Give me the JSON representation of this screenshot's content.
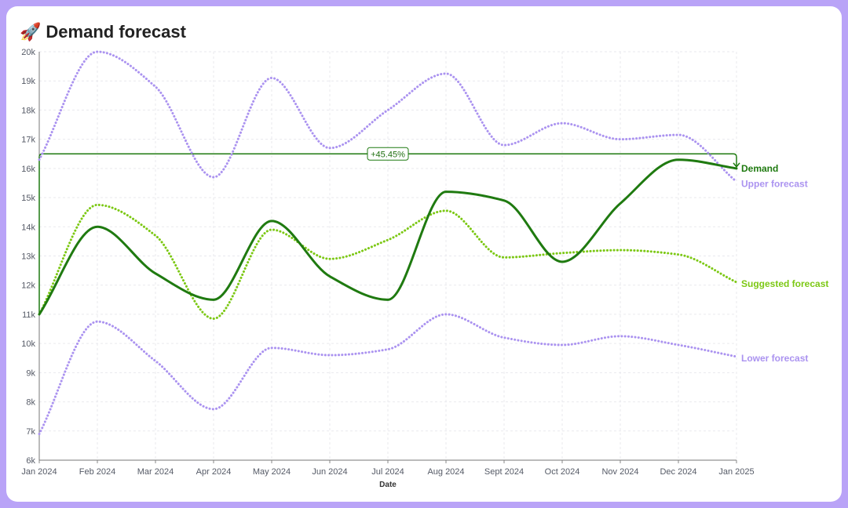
{
  "title": {
    "emoji": "🚀",
    "text": "Demand forecast"
  },
  "colors": {
    "demand": "#1f7a10",
    "suggested": "#7cc814",
    "bounds": "#ab93f0",
    "grid": "#e9e9ee"
  },
  "chart_data": {
    "type": "line",
    "xlabel": "Date",
    "ylabel": "",
    "ylim": [
      6000,
      20000
    ],
    "yticks": [
      6000,
      7000,
      8000,
      9000,
      10000,
      11000,
      12000,
      13000,
      14000,
      15000,
      16000,
      17000,
      18000,
      19000,
      20000
    ],
    "ytick_labels": [
      "6k",
      "7k",
      "8k",
      "9k",
      "10k",
      "11k",
      "12k",
      "13k",
      "14k",
      "15k",
      "16k",
      "17k",
      "18k",
      "19k",
      "20k"
    ],
    "categories": [
      "Jan 2024",
      "Feb 2024",
      "Mar 2024",
      "Apr 2024",
      "May 2024",
      "Jun 2024",
      "Jul 2024",
      "Aug 2024",
      "Sept 2024",
      "Oct 2024",
      "Nov 2024",
      "Dec 2024",
      "Jan 2025"
    ],
    "grid": true,
    "series": [
      {
        "name": "Upper forecast",
        "key": "bounds",
        "dotted": true,
        "values": [
          16300,
          20000,
          18800,
          15700,
          19100,
          16700,
          18000,
          19250,
          16800,
          17550,
          17000,
          17150,
          15550
        ]
      },
      {
        "name": "Suggested forecast",
        "key": "suggested",
        "dotted": true,
        "values": [
          11000,
          14750,
          13700,
          10850,
          13900,
          12900,
          13550,
          14550,
          12950,
          13100,
          13200,
          13050,
          12100
        ]
      },
      {
        "name": "Lower forecast",
        "key": "bounds",
        "dotted": true,
        "values": [
          6900,
          10750,
          9400,
          7750,
          9850,
          9600,
          9800,
          11000,
          10200,
          9950,
          10250,
          9950,
          9550
        ]
      },
      {
        "name": "Demand",
        "key": "demand",
        "dotted": false,
        "values": [
          11000,
          14000,
          12400,
          11500,
          14200,
          12300,
          11500,
          15200,
          14900,
          12800,
          14800,
          16300,
          16000
        ]
      }
    ],
    "annotation": {
      "label": "+45.45%",
      "from": "Jan 2024",
      "to": "Jan 2025",
      "level": 16500
    }
  }
}
